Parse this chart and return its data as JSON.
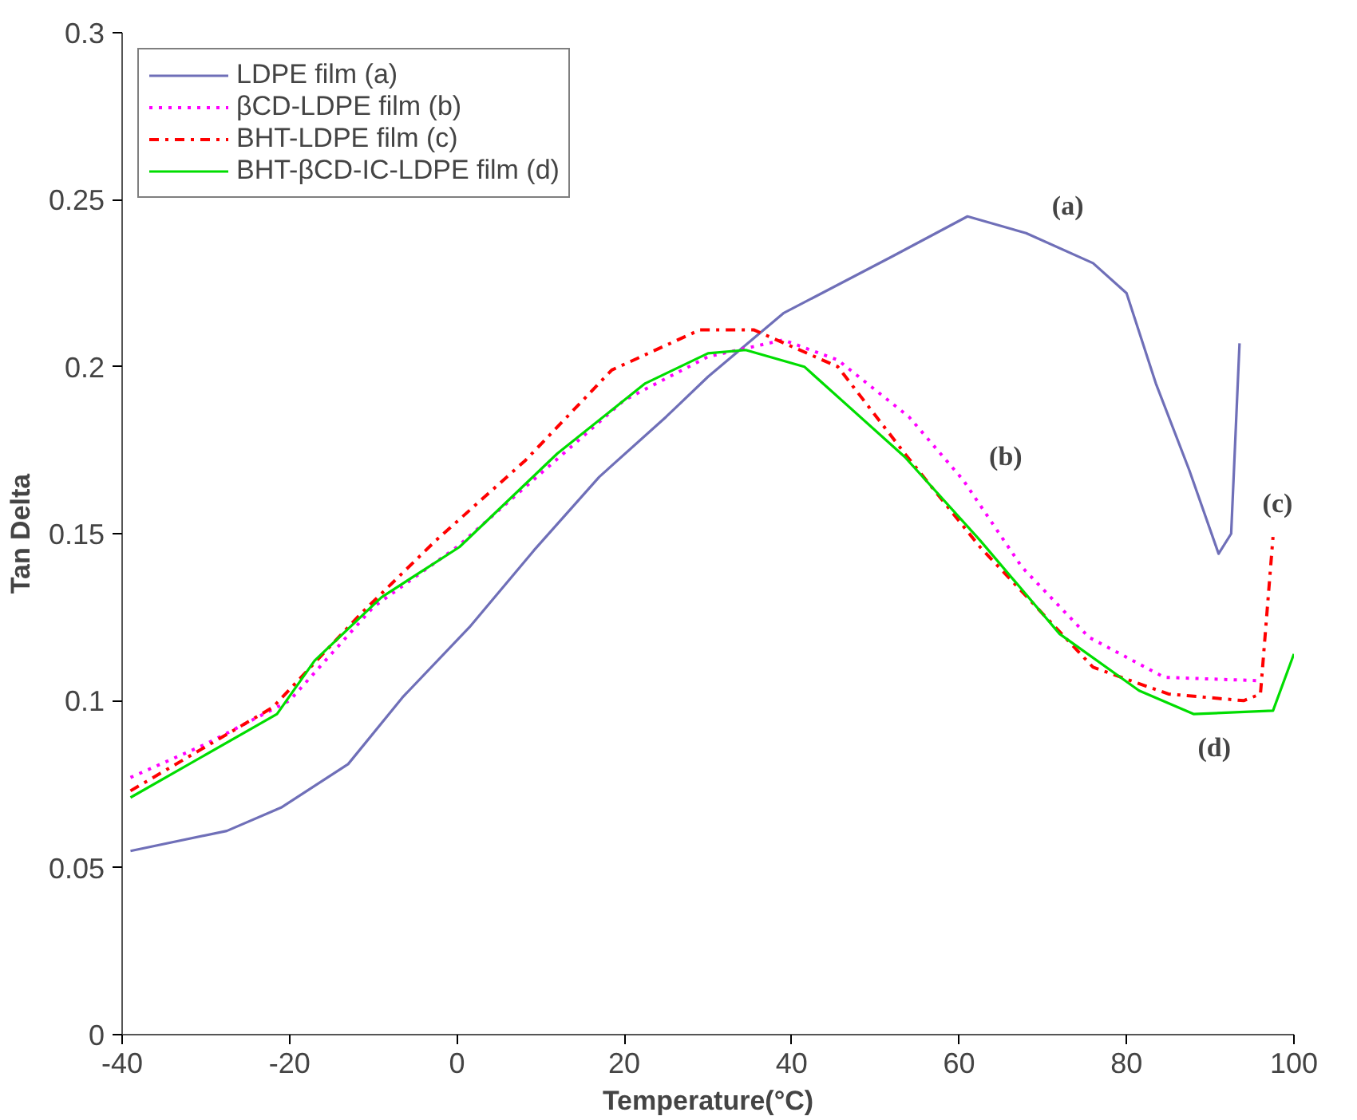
{
  "chart_data": {
    "type": "line",
    "xlabel": "Temperature(°C)",
    "ylabel": "Tan Delta",
    "xlim": [
      -40,
      100
    ],
    "ylim": [
      0,
      0.3
    ],
    "xticks": [
      -40,
      -20,
      0,
      20,
      40,
      60,
      80,
      100
    ],
    "yticks": [
      0,
      0.05,
      0.1,
      0.15,
      0.2,
      0.25,
      0.3
    ],
    "grid": false,
    "legend": "top left",
    "series": [
      {
        "name": "LDPE film (a)",
        "color": "#6f6fb8",
        "line_style": "solid",
        "x": [
          -39,
          -27.5,
          -21,
          -13,
          -6.5,
          1.5,
          9.2,
          17,
          25,
          30,
          39,
          52,
          61,
          68,
          76,
          80,
          83.5,
          87.5,
          91,
          92.5,
          93.5
        ],
        "values": [
          0.055,
          0.061,
          0.068,
          0.081,
          0.101,
          0.122,
          0.145,
          0.167,
          0.185,
          0.197,
          0.216,
          0.233,
          0.245,
          0.24,
          0.231,
          0.222,
          0.195,
          0.169,
          0.144,
          0.15,
          0.207
        ]
      },
      {
        "name": "βCD-LDPE film (b)",
        "color": "#ff00ff",
        "line_style": "dotted",
        "x": [
          -39,
          -30,
          -20,
          -10,
          0,
          10,
          20,
          30,
          39,
          45.5,
          54,
          60.5,
          67.5,
          75.5,
          84.5,
          95.5
        ],
        "values": [
          0.077,
          0.087,
          0.1,
          0.128,
          0.146,
          0.168,
          0.19,
          0.203,
          0.208,
          0.202,
          0.185,
          0.166,
          0.14,
          0.119,
          0.107,
          0.106
        ]
      },
      {
        "name": "BHT-LDPE film (c)",
        "color": "#ff0000",
        "line_style": "dashdot",
        "x": [
          -39,
          -22,
          -11.5,
          -2.5,
          8.2,
          18.5,
          29,
          35.5,
          45.5,
          53.5,
          62.5,
          76,
          85,
          94,
          96,
          97.5
        ],
        "values": [
          0.073,
          0.098,
          0.126,
          0.148,
          0.172,
          0.199,
          0.211,
          0.211,
          0.2,
          0.174,
          0.146,
          0.11,
          0.102,
          0.1,
          0.102,
          0.149
        ]
      },
      {
        "name": "BHT-βCD-IC-LDPE film (d)",
        "color": "#00dd00",
        "line_style": "solid",
        "x": [
          -39,
          -21.5,
          -17,
          -9,
          0.3,
          12,
          22.5,
          30,
          34.5,
          41.5,
          53.5,
          62.5,
          72,
          81.5,
          88,
          97.5,
          100
        ],
        "values": [
          0.071,
          0.096,
          0.112,
          0.131,
          0.146,
          0.174,
          0.195,
          0.204,
          0.205,
          0.2,
          0.173,
          0.148,
          0.12,
          0.103,
          0.096,
          0.097,
          0.114
        ]
      }
    ],
    "annotations": [
      "(a)",
      "(b)",
      "(c)",
      "(d)"
    ]
  }
}
